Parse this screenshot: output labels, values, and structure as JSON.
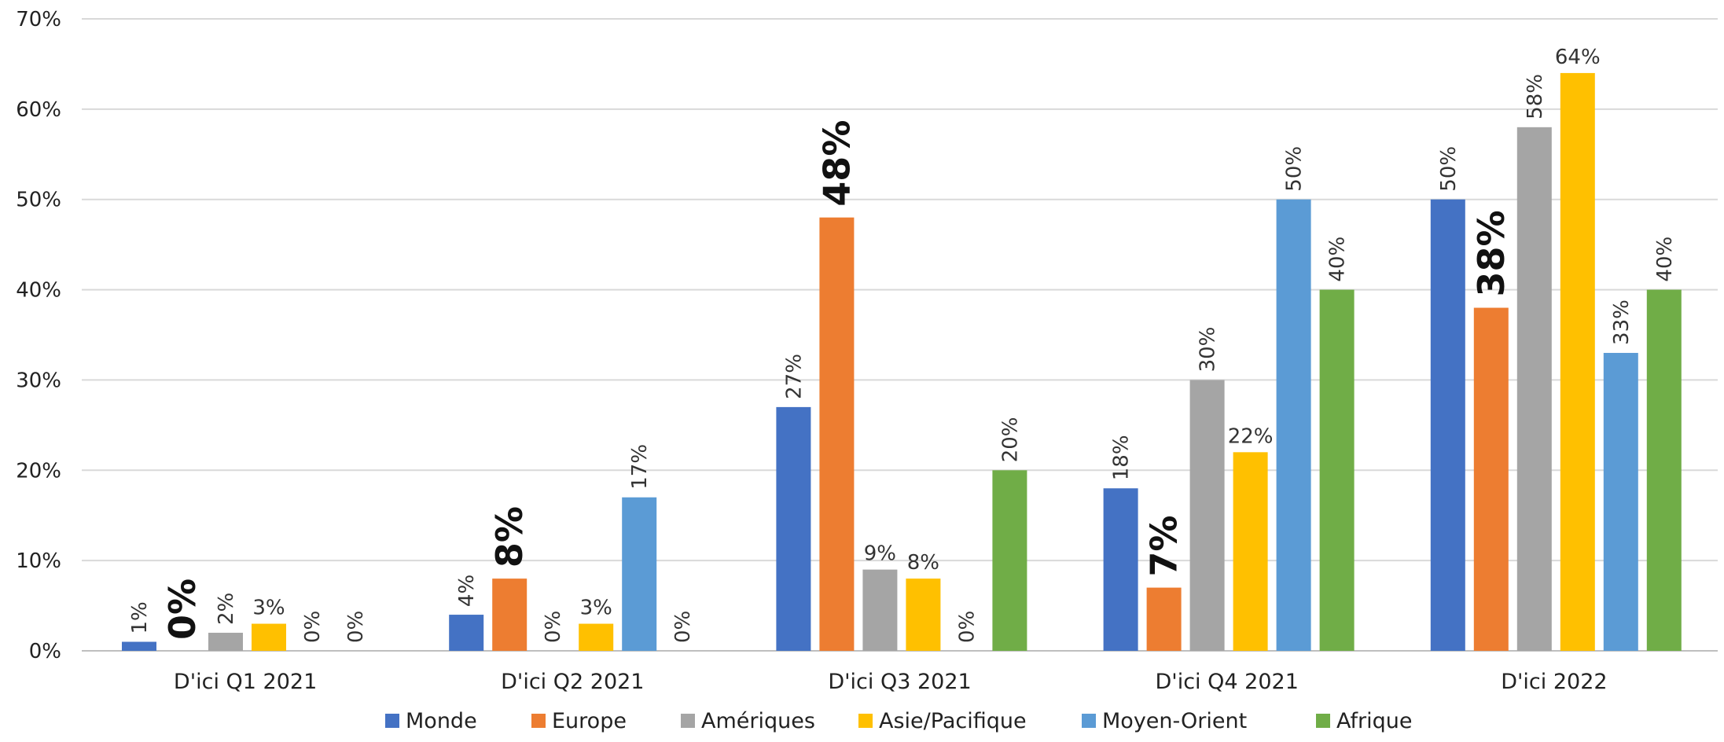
{
  "chart_data": {
    "type": "bar",
    "categories": [
      "D'ici Q1 2021",
      "D'ici Q2 2021",
      "D'ici Q3 2021",
      "D'ici Q4 2021",
      "D'ici 2022"
    ],
    "series": [
      {
        "name": "Monde",
        "color": "#4472C4",
        "values": [
          1,
          4,
          27,
          18,
          50
        ],
        "labels": [
          "1%",
          "4%",
          "27%",
          "18%",
          "50%"
        ]
      },
      {
        "name": "Europe",
        "color": "#ED7D31",
        "values": [
          0,
          8,
          48,
          7,
          38
        ],
        "labels": [
          "0%",
          "8%",
          "48%",
          "7%",
          "38%"
        ]
      },
      {
        "name": "Amériques",
        "color": "#A5A5A5",
        "values": [
          2,
          0,
          9,
          30,
          58
        ],
        "labels": [
          "2%",
          "0%",
          "9%",
          "30%",
          "58%"
        ]
      },
      {
        "name": "Asie/Pacifique",
        "color": "#FFC000",
        "values": [
          3,
          3,
          8,
          22,
          64
        ],
        "labels": [
          "3%",
          "3%",
          "8%",
          "22%",
          "64%"
        ]
      },
      {
        "name": "Moyen-Orient",
        "color": "#5B9BD5",
        "values": [
          0,
          17,
          0,
          50,
          33
        ],
        "labels": [
          "0%",
          "17%",
          "0%",
          "50%",
          "33%"
        ]
      },
      {
        "name": "Afrique",
        "color": "#70AD47",
        "values": [
          0,
          0,
          20,
          40,
          40
        ],
        "labels": [
          "0%",
          "0%",
          "20%",
          "40%",
          "40%"
        ]
      }
    ],
    "emphasized_series": "Europe",
    "horizontal_labels": [
      {
        "series": 3,
        "category": 0
      },
      {
        "series": 3,
        "category": 1
      },
      {
        "series": 3,
        "category": 2
      },
      {
        "series": 3,
        "category": 3
      },
      {
        "series": 3,
        "category": 4
      },
      {
        "series": 2,
        "category": 2
      }
    ],
    "yticks": [
      "0%",
      "10%",
      "20%",
      "30%",
      "40%",
      "50%",
      "60%",
      "70%"
    ],
    "ylim": [
      0,
      70
    ],
    "grid": true,
    "legend_position": "bottom"
  }
}
